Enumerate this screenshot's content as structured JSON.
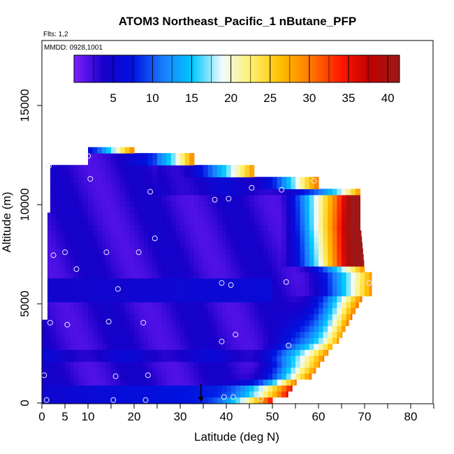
{
  "chart_data": {
    "type": "heatmap",
    "title": "ATOM3 Northeast_Pacific_1 nButane_PFP",
    "flights_note": "Flts: 1,2",
    "mmdd_note": "MMDD: 0928,1001",
    "xlabel": "Latitude (deg N)",
    "ylabel": "Altitude (m)",
    "xlim": [
      0,
      85
    ],
    "ylim": [
      0,
      17800
    ],
    "x_ticks": [
      0,
      5,
      10,
      20,
      30,
      40,
      50,
      60,
      70,
      80
    ],
    "x_tick_labels": [
      "0",
      "5",
      "10",
      "20",
      "30",
      "40",
      "50",
      "60",
      "70",
      "80"
    ],
    "x_minor_ticks": [
      0,
      5,
      10,
      15,
      20,
      25,
      30,
      35,
      40,
      45,
      50,
      55,
      60,
      65,
      70,
      75,
      80,
      85
    ],
    "y_ticks": [
      0,
      5000,
      10000,
      15000
    ],
    "y_tick_labels": [
      "0",
      "5000",
      "10000",
      "15000"
    ],
    "colorbar": {
      "min": 0,
      "max": 41.5,
      "ticks": [
        5,
        10,
        15,
        20,
        25,
        30,
        35,
        40
      ],
      "tick_labels": [
        "5",
        "10",
        "15",
        "20",
        "25",
        "30",
        "35",
        "40"
      ],
      "colors": [
        "#7f1fff",
        "#1800c8",
        "#0012e0",
        "#1a7cff",
        "#00c8ff",
        "#f0fbff",
        "#fff06a",
        "#ffbe00",
        "#ff7800",
        "#ff1a00",
        "#c00000",
        "#9a1a1a"
      ]
    },
    "flight_track_latitudes": [
      0,
      1,
      2,
      3,
      4,
      5,
      6,
      7,
      8,
      9,
      10,
      11,
      12,
      13,
      14,
      15,
      16,
      17,
      18,
      19,
      20,
      21,
      22,
      23,
      24,
      25,
      26,
      27,
      28,
      29,
      30,
      31,
      32,
      33,
      34,
      35,
      36,
      37,
      38,
      39,
      40,
      41,
      42,
      43,
      44,
      45,
      46,
      47,
      48,
      49,
      50,
      51,
      52,
      53,
      54,
      55,
      56,
      57,
      58,
      59,
      60,
      61,
      62,
      63,
      64,
      65,
      66,
      67,
      68,
      69,
      70,
      71
    ],
    "altitude_bands_m": [
      0,
      300,
      600,
      900,
      1200,
      1500,
      1800,
      2100,
      2400,
      2700,
      3000,
      3300,
      3600,
      3900,
      4200,
      4500,
      4800,
      5100,
      5400,
      5700,
      6000,
      6300,
      6600,
      6900,
      7200,
      7500,
      7800,
      8100,
      8400,
      8700,
      9000,
      9300,
      9600,
      9900,
      10200,
      10500,
      10800,
      11100,
      11400,
      11700,
      12000,
      12300,
      12600
    ],
    "samples": [
      {
        "lat": 0.5,
        "alt": 1400
      },
      {
        "lat": 1,
        "alt": 150
      },
      {
        "lat": 1.5,
        "alt": 11950
      },
      {
        "lat": 1.8,
        "alt": 4050
      },
      {
        "lat": 2.5,
        "alt": 7450
      },
      {
        "lat": 5,
        "alt": 7600
      },
      {
        "lat": 5.5,
        "alt": 3950
      },
      {
        "lat": 7.5,
        "alt": 6750
      },
      {
        "lat": 10,
        "alt": 12450
      },
      {
        "lat": 10.5,
        "alt": 11300
      },
      {
        "lat": 14,
        "alt": 7600
      },
      {
        "lat": 14.5,
        "alt": 4100
      },
      {
        "lat": 15.5,
        "alt": 150
      },
      {
        "lat": 16,
        "alt": 1350
      },
      {
        "lat": 16.5,
        "alt": 5750
      },
      {
        "lat": 21,
        "alt": 7600
      },
      {
        "lat": 22,
        "alt": 4050
      },
      {
        "lat": 22.5,
        "alt": 150
      },
      {
        "lat": 23,
        "alt": 1400
      },
      {
        "lat": 23.5,
        "alt": 10650
      },
      {
        "lat": 24.5,
        "alt": 8300
      },
      {
        "lat": 37.5,
        "alt": 10250
      },
      {
        "lat": 39,
        "alt": 6050
      },
      {
        "lat": 39,
        "alt": 3100
      },
      {
        "lat": 39.5,
        "alt": 300
      },
      {
        "lat": 40.5,
        "alt": 10300
      },
      {
        "lat": 41,
        "alt": 5950
      },
      {
        "lat": 41.5,
        "alt": 300
      },
      {
        "lat": 42,
        "alt": 3450
      },
      {
        "lat": 45.5,
        "alt": 10850
      },
      {
        "lat": 47.5,
        "alt": 200
      },
      {
        "lat": 52,
        "alt": 10750
      },
      {
        "lat": 53,
        "alt": 6100
      },
      {
        "lat": 53.5,
        "alt": 2900
      },
      {
        "lat": 59,
        "alt": 11200
      },
      {
        "lat": 71,
        "alt": 6050
      }
    ],
    "marker": {
      "lat": 34.5,
      "alt": 600,
      "label": "arrow"
    }
  }
}
